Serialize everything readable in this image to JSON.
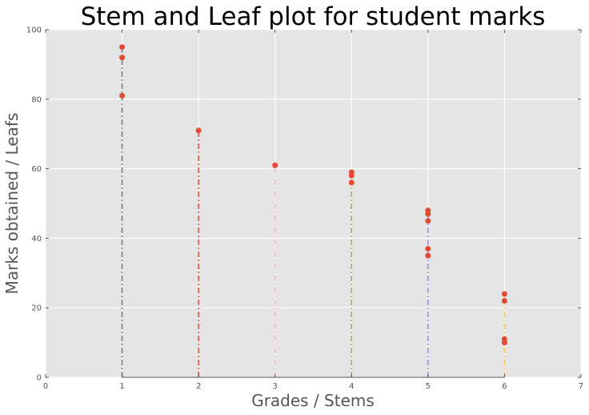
{
  "chart_data": {
    "type": "scatter",
    "title": "Stem and Leaf plot for student marks",
    "xlabel": "Grades / Stems",
    "ylabel": "Marks obtained / Leafs",
    "xlim": [
      0,
      7
    ],
    "ylim": [
      0,
      100
    ],
    "xticks": [
      "0",
      "1",
      "2",
      "3",
      "4",
      "5",
      "6",
      "7"
    ],
    "yticks": [
      "0",
      "20",
      "40",
      "60",
      "80",
      "100"
    ],
    "grid": true,
    "background": "#e5e5e5",
    "marker_color": "#e24a33",
    "baseline_color": "#888888",
    "stems": [
      {
        "x": 1,
        "color": "#777777",
        "values": [
          81,
          92,
          95
        ]
      },
      {
        "x": 2,
        "color": "#e24a33",
        "values": [
          71
        ]
      },
      {
        "x": 3,
        "color": "#ffb5b8",
        "values": [
          61
        ]
      },
      {
        "x": 4,
        "color": "#8eba42",
        "values": [
          56,
          58,
          59
        ]
      },
      {
        "x": 5,
        "color": "#988ed5",
        "values": [
          35,
          37,
          45,
          47,
          48
        ]
      },
      {
        "x": 6,
        "color": "#fbc15e",
        "values": [
          10,
          11,
          22,
          24
        ]
      }
    ]
  }
}
